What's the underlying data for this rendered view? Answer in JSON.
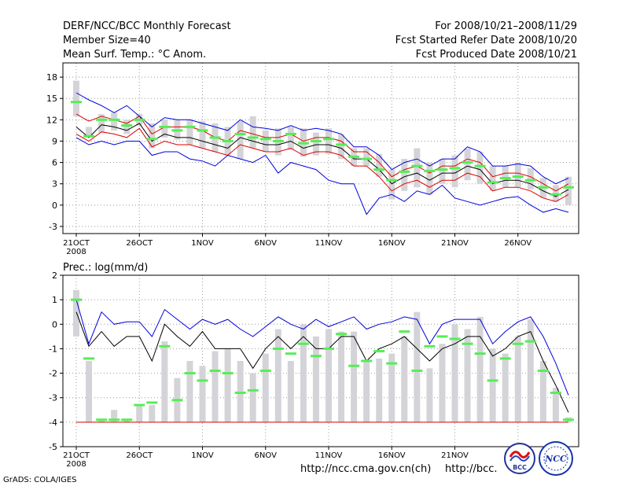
{
  "header": {
    "title": "DERF/NCC/BCC Monthly Forecast",
    "member_size": "Member Size=40",
    "variable": "Mean Surf. Temp.: °C Anom.",
    "period": "For 2008/10/21–2008/11/29",
    "refer_date": "Fcst Started Refer Date 2008/10/20",
    "produced_date": "Fcst Produced Date 2008/10/21"
  },
  "footer": {
    "grads_label": "GrADS: COLA/IGES",
    "url1": "http://ncc.cma.gov.cn(ch)",
    "url2": "http://bcc.",
    "logo1_text": "BCC",
    "logo2_text": "NCC"
  },
  "colors": {
    "grid": "#999999",
    "bar": "#d4d4d8",
    "median": "#55ee55",
    "black_line": "#000000",
    "red_line": "#dd0000",
    "blue_line": "#0000dd"
  },
  "chart_data": [
    {
      "type": "box-line",
      "title": "Mean Surf. Temp.: °C Anom.",
      "x_tick_labels": [
        "21OCT",
        "26OCT",
        "1NOV",
        "6NOV",
        "11NOV",
        "16NOV",
        "21NOV",
        "26NOV"
      ],
      "x_sub_label": "2008",
      "ylim": [
        -4,
        20
      ],
      "y_ticks": [
        -3,
        0,
        3,
        6,
        9,
        12,
        15,
        18
      ],
      "days": 40,
      "bar_low": [
        12.5,
        9.5,
        10.2,
        10.5,
        10.0,
        11.2,
        8.0,
        9.5,
        9.2,
        8.5,
        8.0,
        7.5,
        7.0,
        6.5,
        8.0,
        7.5,
        7.0,
        7.8,
        6.8,
        7.0,
        7.2,
        6.5,
        5.5,
        5.5,
        4.0,
        0.8,
        2.0,
        2.5,
        1.5,
        3.0,
        2.5,
        3.5,
        3.0,
        2.0,
        2.5,
        2.5,
        2.2,
        1.0,
        0.5,
        0.0
      ],
      "bar_high": [
        17.5,
        11.0,
        12.8,
        13.0,
        12.0,
        12.8,
        11.5,
        12.0,
        12.0,
        12.0,
        11.8,
        11.5,
        11.0,
        11.8,
        12.5,
        10.5,
        10.8,
        11.0,
        10.8,
        10.2,
        10.8,
        10.0,
        8.0,
        8.0,
        7.2,
        5.0,
        6.5,
        8.0,
        6.0,
        6.5,
        7.0,
        8.0,
        7.5,
        5.5,
        5.5,
        6.0,
        5.2,
        3.8,
        2.8,
        4.0
      ],
      "median": [
        14.5,
        9.7,
        12.0,
        12.0,
        11.2,
        12.0,
        9.3,
        11.0,
        10.5,
        11.0,
        10.5,
        9.5,
        9.0,
        10.0,
        9.5,
        9.3,
        9.0,
        10.0,
        8.7,
        9.0,
        9.3,
        8.5,
        6.8,
        6.5,
        5.0,
        3.5,
        4.7,
        5.5,
        4.8,
        5.0,
        5.2,
        6.0,
        5.5,
        3.2,
        3.8,
        4.0,
        3.5,
        2.5,
        1.5,
        2.5
      ],
      "series": [
        {
          "name": "ensemble-mean",
          "color": "black",
          "values": [
            11.0,
            9.5,
            11.3,
            11.0,
            10.5,
            11.5,
            9.0,
            10.0,
            9.5,
            9.5,
            9.0,
            8.5,
            8.0,
            9.5,
            9.0,
            8.5,
            8.5,
            9.0,
            8.0,
            8.5,
            8.5,
            8.0,
            6.5,
            6.5,
            5.0,
            3.0,
            4.0,
            4.5,
            3.5,
            4.5,
            4.5,
            5.5,
            5.0,
            3.0,
            3.5,
            3.5,
            3.0,
            2.0,
            1.2,
            2.2
          ]
        },
        {
          "name": "upper-inner",
          "color": "red",
          "values": [
            12.8,
            11.8,
            12.5,
            12.0,
            11.5,
            12.5,
            10.0,
            11.0,
            11.0,
            11.0,
            10.5,
            9.5,
            9.0,
            10.5,
            10.0,
            9.5,
            9.5,
            10.0,
            9.0,
            9.5,
            9.5,
            9.0,
            7.5,
            7.5,
            6.0,
            4.0,
            5.0,
            5.5,
            4.5,
            5.5,
            5.5,
            6.5,
            6.0,
            4.0,
            4.5,
            4.5,
            4.0,
            3.0,
            2.0,
            3.0
          ]
        },
        {
          "name": "lower-inner",
          "color": "red",
          "values": [
            10.0,
            9.0,
            10.3,
            10.0,
            9.5,
            10.8,
            8.2,
            9.0,
            8.5,
            8.5,
            8.0,
            7.5,
            7.0,
            8.5,
            8.0,
            7.5,
            7.5,
            8.0,
            7.0,
            7.5,
            7.5,
            7.0,
            5.5,
            5.5,
            4.0,
            2.0,
            3.0,
            3.5,
            2.5,
            3.5,
            3.5,
            4.5,
            4.0,
            2.0,
            2.5,
            2.5,
            2.0,
            1.0,
            0.5,
            1.5
          ]
        },
        {
          "name": "upper-outer",
          "color": "blue",
          "values": [
            15.8,
            14.8,
            14.0,
            13.0,
            14.0,
            12.5,
            11.0,
            12.3,
            12.0,
            12.0,
            11.5,
            11.0,
            10.5,
            12.0,
            11.0,
            10.8,
            10.5,
            11.2,
            10.5,
            10.8,
            10.5,
            10.0,
            8.2,
            8.2,
            7.0,
            5.0,
            6.0,
            6.5,
            5.5,
            6.5,
            6.5,
            8.2,
            7.5,
            5.5,
            5.5,
            5.8,
            5.5,
            4.0,
            3.0,
            3.8
          ]
        },
        {
          "name": "lower-outer",
          "color": "blue",
          "values": [
            9.5,
            8.5,
            9.0,
            8.5,
            9.0,
            9.0,
            7.0,
            7.5,
            7.5,
            6.5,
            6.2,
            5.5,
            7.0,
            6.5,
            6.0,
            7.0,
            4.5,
            6.0,
            5.5,
            5.0,
            3.5,
            3.0,
            3.0,
            -1.3,
            1.0,
            1.5,
            0.5,
            2.0,
            1.5,
            2.8,
            1.0,
            0.5,
            0.0,
            0.5,
            1.0,
            1.2,
            0.0,
            -1.0,
            -0.5,
            -1.0
          ]
        }
      ]
    },
    {
      "type": "box-line",
      "title": "Prec.: log(mm/d)",
      "x_tick_labels": [
        "21OCT",
        "26OCT",
        "1NOV",
        "6NOV",
        "11NOV",
        "16NOV",
        "21NOV",
        "26NOV"
      ],
      "x_sub_label": "2008",
      "ylim": [
        -5,
        2
      ],
      "y_ticks": [
        -5,
        -4,
        -3,
        -2,
        -1,
        0,
        1,
        2
      ],
      "days": 40,
      "baseline": -4,
      "bar_low": [
        -0.5,
        -4.0,
        -4.0,
        -4.0,
        -4.0,
        -4.0,
        -4.0,
        -4.0,
        -4.0,
        -4.0,
        -4.0,
        -4.0,
        -4.0,
        -4.0,
        -4.0,
        -4.0,
        -4.0,
        -4.0,
        -4.0,
        -4.0,
        -4.0,
        -4.0,
        -4.0,
        -4.0,
        -4.0,
        -4.0,
        -4.0,
        -4.0,
        -4.0,
        -4.0,
        -4.0,
        -4.0,
        -4.0,
        -4.0,
        -4.0,
        -4.0,
        -4.0,
        -4.0,
        -4.0,
        -4.0
      ],
      "bar_high": [
        1.4,
        -1.5,
        -3.9,
        -3.5,
        -3.9,
        -3.3,
        -3.3,
        -0.7,
        -2.2,
        -1.5,
        -1.7,
        -1.1,
        -1.0,
        -1.5,
        -2.0,
        -1.2,
        -0.2,
        -1.5,
        0.0,
        -0.5,
        -0.2,
        -0.3,
        -0.3,
        -1.5,
        -1.4,
        -1.2,
        -0.5,
        0.5,
        -1.8,
        -0.8,
        0.0,
        -0.2,
        0.3,
        -1.0,
        -1.2,
        -0.5,
        0.2,
        -1.5,
        -2.6,
        -3.8
      ],
      "median": [
        1.0,
        -1.4,
        -3.9,
        -3.9,
        -3.9,
        -3.3,
        -3.2,
        -0.9,
        -3.1,
        -2.0,
        -2.3,
        -1.9,
        -2.0,
        -2.8,
        -2.7,
        -1.9,
        -1.0,
        -1.2,
        -0.8,
        -1.3,
        -1.0,
        -0.4,
        -1.7,
        -1.5,
        -1.1,
        -1.6,
        -0.3,
        -1.9,
        -0.9,
        -0.5,
        -0.6,
        -0.8,
        -1.2,
        -2.3,
        -1.4,
        -0.8,
        -0.7,
        -1.9,
        -2.8,
        -3.9
      ],
      "series": [
        {
          "name": "ensemble-mean",
          "color": "black",
          "values": [
            0.5,
            -0.9,
            -0.3,
            -0.9,
            -0.5,
            -0.5,
            -1.5,
            0.0,
            -0.5,
            -0.9,
            -0.3,
            -1.0,
            -1.0,
            -1.0,
            -1.8,
            -1.0,
            -0.5,
            -1.0,
            -0.5,
            -1.0,
            -1.0,
            -0.5,
            -0.5,
            -1.5,
            -1.0,
            -0.8,
            -0.5,
            -1.0,
            -1.5,
            -1.0,
            -0.8,
            -0.5,
            -0.5,
            -1.3,
            -1.0,
            -0.5,
            -0.3,
            -1.5,
            -2.5,
            -3.6
          ]
        },
        {
          "name": "upper",
          "color": "blue",
          "values": [
            1.0,
            -0.8,
            0.5,
            0.0,
            0.1,
            0.1,
            -0.5,
            0.6,
            0.2,
            -0.2,
            0.2,
            0.0,
            0.2,
            -0.2,
            -0.5,
            -0.1,
            0.3,
            0.0,
            -0.2,
            0.2,
            -0.1,
            0.1,
            0.3,
            -0.2,
            0.0,
            0.1,
            0.3,
            0.2,
            -0.8,
            0.0,
            0.2,
            0.2,
            0.2,
            -0.8,
            -0.3,
            0.1,
            0.3,
            -0.5,
            -1.6,
            -2.9
          ]
        }
      ],
      "flat_line": {
        "name": "zero-rain",
        "color": "red",
        "value": -4
      }
    }
  ]
}
